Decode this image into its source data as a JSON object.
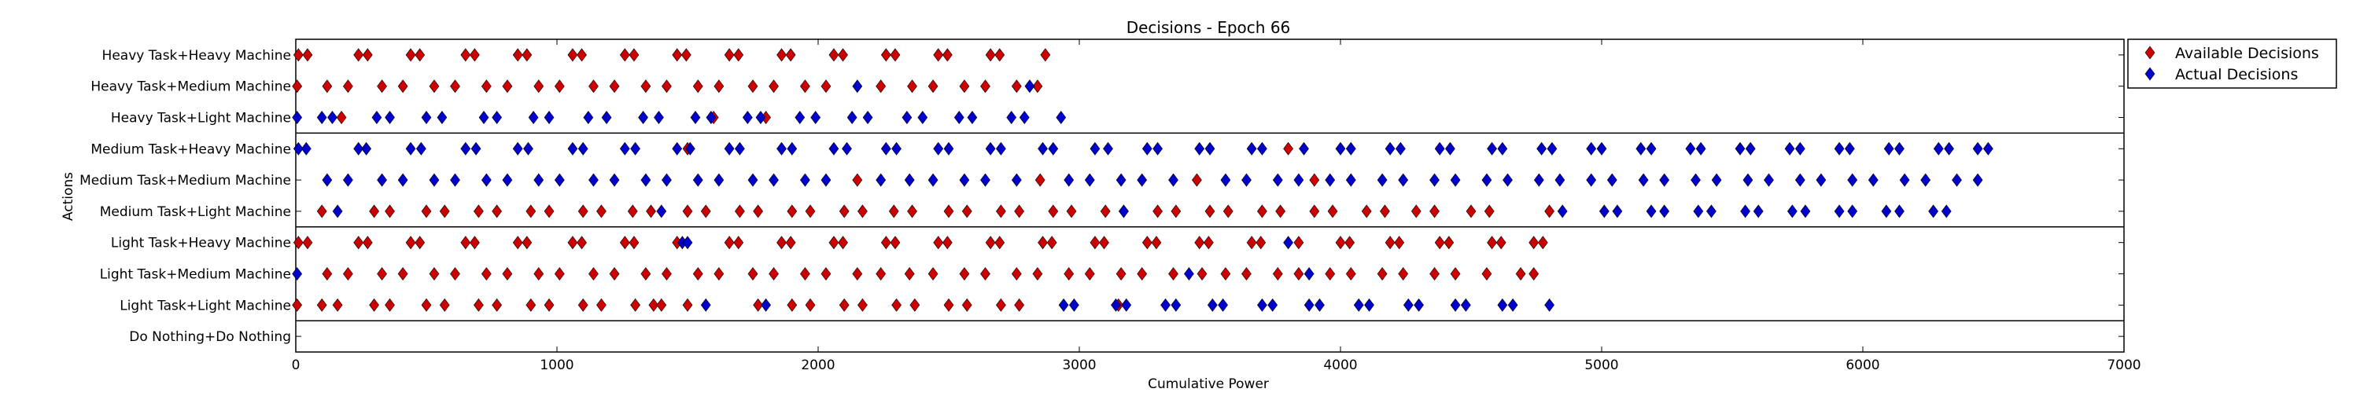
{
  "chart_data": {
    "type": "scatter",
    "title": "Decisions - Epoch 66",
    "xlabel": "Cumulative Power",
    "ylabel": "Actions",
    "xlim": [
      0,
      7000
    ],
    "x_ticks": [
      0,
      1000,
      2000,
      3000,
      4000,
      5000,
      6000,
      7000
    ],
    "grid": false,
    "legend_position": "outside-top-right",
    "categories": [
      "Heavy Task+Heavy Machine",
      "Heavy Task+Medium Machine",
      "Heavy Task+Light Machine",
      "Medium Task+Heavy Machine",
      "Medium Task+Medium Machine",
      "Medium Task+Light Machine",
      "Light Task+Heavy Machine",
      "Light Task+Medium Machine",
      "Light Task+Light Machine",
      "Do Nothing+Do Nothing"
    ],
    "series": [
      {
        "name": "Available Decisions",
        "color": "#cc0000",
        "marker": "diamond",
        "points": [
          {
            "category": "Heavy Task+Heavy Machine",
            "x": [
              10,
              45,
              240,
              275,
              440,
              475,
              650,
              685,
              850,
              885,
              1060,
              1095,
              1260,
              1295,
              1460,
              1495,
              1660,
              1695,
              1860,
              1895,
              2060,
              2095,
              2260,
              2295,
              2460,
              2495,
              2660,
              2695,
              2870
            ]
          },
          {
            "category": "Heavy Task+Medium Machine",
            "x": [
              5,
              120,
              200,
              330,
              410,
              530,
              610,
              730,
              810,
              930,
              1010,
              1140,
              1220,
              1340,
              1420,
              1540,
              1620,
              1750,
              1830,
              1950,
              2030,
              2240,
              2360,
              2440,
              2560,
              2640,
              2760,
              2840
            ]
          },
          {
            "category": "Heavy Task+Light Machine",
            "x": [
              175,
              1600,
              1800
            ]
          },
          {
            "category": "Medium Task+Heavy Machine",
            "x": [
              1500,
              3800
            ]
          },
          {
            "category": "Medium Task+Medium Machine",
            "x": [
              2150,
              2850,
              3450,
              3900
            ]
          },
          {
            "category": "Medium Task+Light Machine",
            "x": [
              100,
              300,
              360,
              500,
              570,
              700,
              770,
              900,
              970,
              1100,
              1170,
              1290,
              1360,
              1500,
              1570,
              1700,
              1770,
              1900,
              1970,
              2100,
              2170,
              2290,
              2360,
              2500,
              2570,
              2700,
              2770,
              2900,
              2970,
              3100,
              3170,
              3300,
              3370,
              3500,
              3570,
              3700,
              3770,
              3900,
              3970,
              4100,
              4170,
              4290,
              4360,
              4500,
              4570,
              4800
            ]
          },
          {
            "category": "Light Task+Heavy Machine",
            "x": [
              10,
              45,
              240,
              275,
              440,
              475,
              650,
              685,
              850,
              885,
              1060,
              1095,
              1260,
              1295,
              1460,
              1660,
              1695,
              1860,
              1895,
              2060,
              2095,
              2260,
              2295,
              2460,
              2495,
              2660,
              2695,
              2860,
              2895,
              3060,
              3095,
              3260,
              3295,
              3460,
              3495,
              3660,
              3695,
              3840,
              4000,
              4035,
              4190,
              4225,
              4380,
              4415,
              4580,
              4615,
              4740,
              4775
            ]
          },
          {
            "category": "Light Task+Medium Machine",
            "x": [
              120,
              200,
              330,
              410,
              530,
              610,
              730,
              810,
              930,
              1010,
              1140,
              1220,
              1340,
              1420,
              1540,
              1620,
              1750,
              1830,
              1950,
              2030,
              2150,
              2240,
              2350,
              2440,
              2560,
              2640,
              2760,
              2840,
              2960,
              3040,
              3160,
              3240,
              3360,
              3470,
              3560,
              3640,
              3760,
              3840,
              3960,
              4040,
              4160,
              4240,
              4360,
              4440,
              4560,
              4690,
              4740
            ]
          },
          {
            "category": "Light Task+Light Machine",
            "x": [
              5,
              100,
              160,
              300,
              360,
              500,
              570,
              700,
              770,
              900,
              970,
              1100,
              1170,
              1300,
              1370,
              1400,
              1500,
              1770,
              1900,
              1970,
              2100,
              2170,
              2300,
              2370,
              2500,
              2570,
              2700,
              2770,
              3150
            ]
          }
        ]
      },
      {
        "name": "Actual Decisions",
        "color": "#0000cc",
        "marker": "diamond",
        "points": [
          {
            "category": "Heavy Task+Medium Machine",
            "x": [
              2150,
              2810
            ]
          },
          {
            "category": "Heavy Task+Light Machine",
            "x": [
              5,
              100,
              140,
              310,
              360,
              500,
              560,
              720,
              770,
              910,
              970,
              1120,
              1190,
              1330,
              1390,
              1530,
              1590,
              1730,
              1780,
              1930,
              1990,
              2130,
              2190,
              2340,
              2400,
              2540,
              2590,
              2740,
              2790,
              2930
            ]
          },
          {
            "category": "Medium Task+Heavy Machine",
            "x": [
              10,
              40,
              240,
              270,
              440,
              480,
              650,
              690,
              850,
              890,
              1060,
              1100,
              1260,
              1300,
              1460,
              1510,
              1660,
              1700,
              1860,
              1900,
              2060,
              2110,
              2260,
              2300,
              2460,
              2500,
              2660,
              2700,
              2860,
              2900,
              3060,
              3110,
              3260,
              3300,
              3460,
              3500,
              3660,
              3700,
              3860,
              4000,
              4040,
              4190,
              4230,
              4380,
              4420,
              4580,
              4620,
              4770,
              4810,
              4960,
              5000,
              5150,
              5190,
              5340,
              5380,
              5530,
              5570,
              5720,
              5760,
              5910,
              5950,
              6100,
              6140,
              6290,
              6330,
              6440,
              6480
            ]
          },
          {
            "category": "Medium Task+Medium Machine",
            "x": [
              120,
              200,
              330,
              410,
              530,
              610,
              730,
              810,
              930,
              1010,
              1140,
              1220,
              1340,
              1420,
              1540,
              1620,
              1750,
              1830,
              1950,
              2030,
              2240,
              2350,
              2440,
              2560,
              2640,
              2760,
              2960,
              3040,
              3160,
              3240,
              3360,
              3560,
              3640,
              3760,
              3840,
              3960,
              4040,
              4160,
              4240,
              4360,
              4440,
              4560,
              4640,
              4760,
              4840,
              4960,
              5040,
              5160,
              5240,
              5360,
              5440,
              5560,
              5640,
              5760,
              5840,
              5960,
              6040,
              6160,
              6240,
              6360,
              6440
            ]
          },
          {
            "category": "Medium Task+Light Machine",
            "x": [
              160,
              1400,
              3170,
              4850,
              5010,
              5060,
              5190,
              5240,
              5370,
              5420,
              5550,
              5600,
              5730,
              5780,
              5910,
              5960,
              6090,
              6140,
              6270,
              6320
            ]
          },
          {
            "category": "Light Task+Heavy Machine",
            "x": [
              1480,
              1500,
              3800
            ]
          },
          {
            "category": "Light Task+Medium Machine",
            "x": [
              5,
              3420,
              3880
            ]
          },
          {
            "category": "Light Task+Light Machine",
            "x": [
              1570,
              1800,
              2940,
              2980,
              3140,
              3180,
              3330,
              3370,
              3510,
              3550,
              3700,
              3740,
              3880,
              3920,
              4070,
              4110,
              4260,
              4300,
              4440,
              4480,
              4620,
              4660,
              4800
            ]
          }
        ]
      }
    ]
  }
}
